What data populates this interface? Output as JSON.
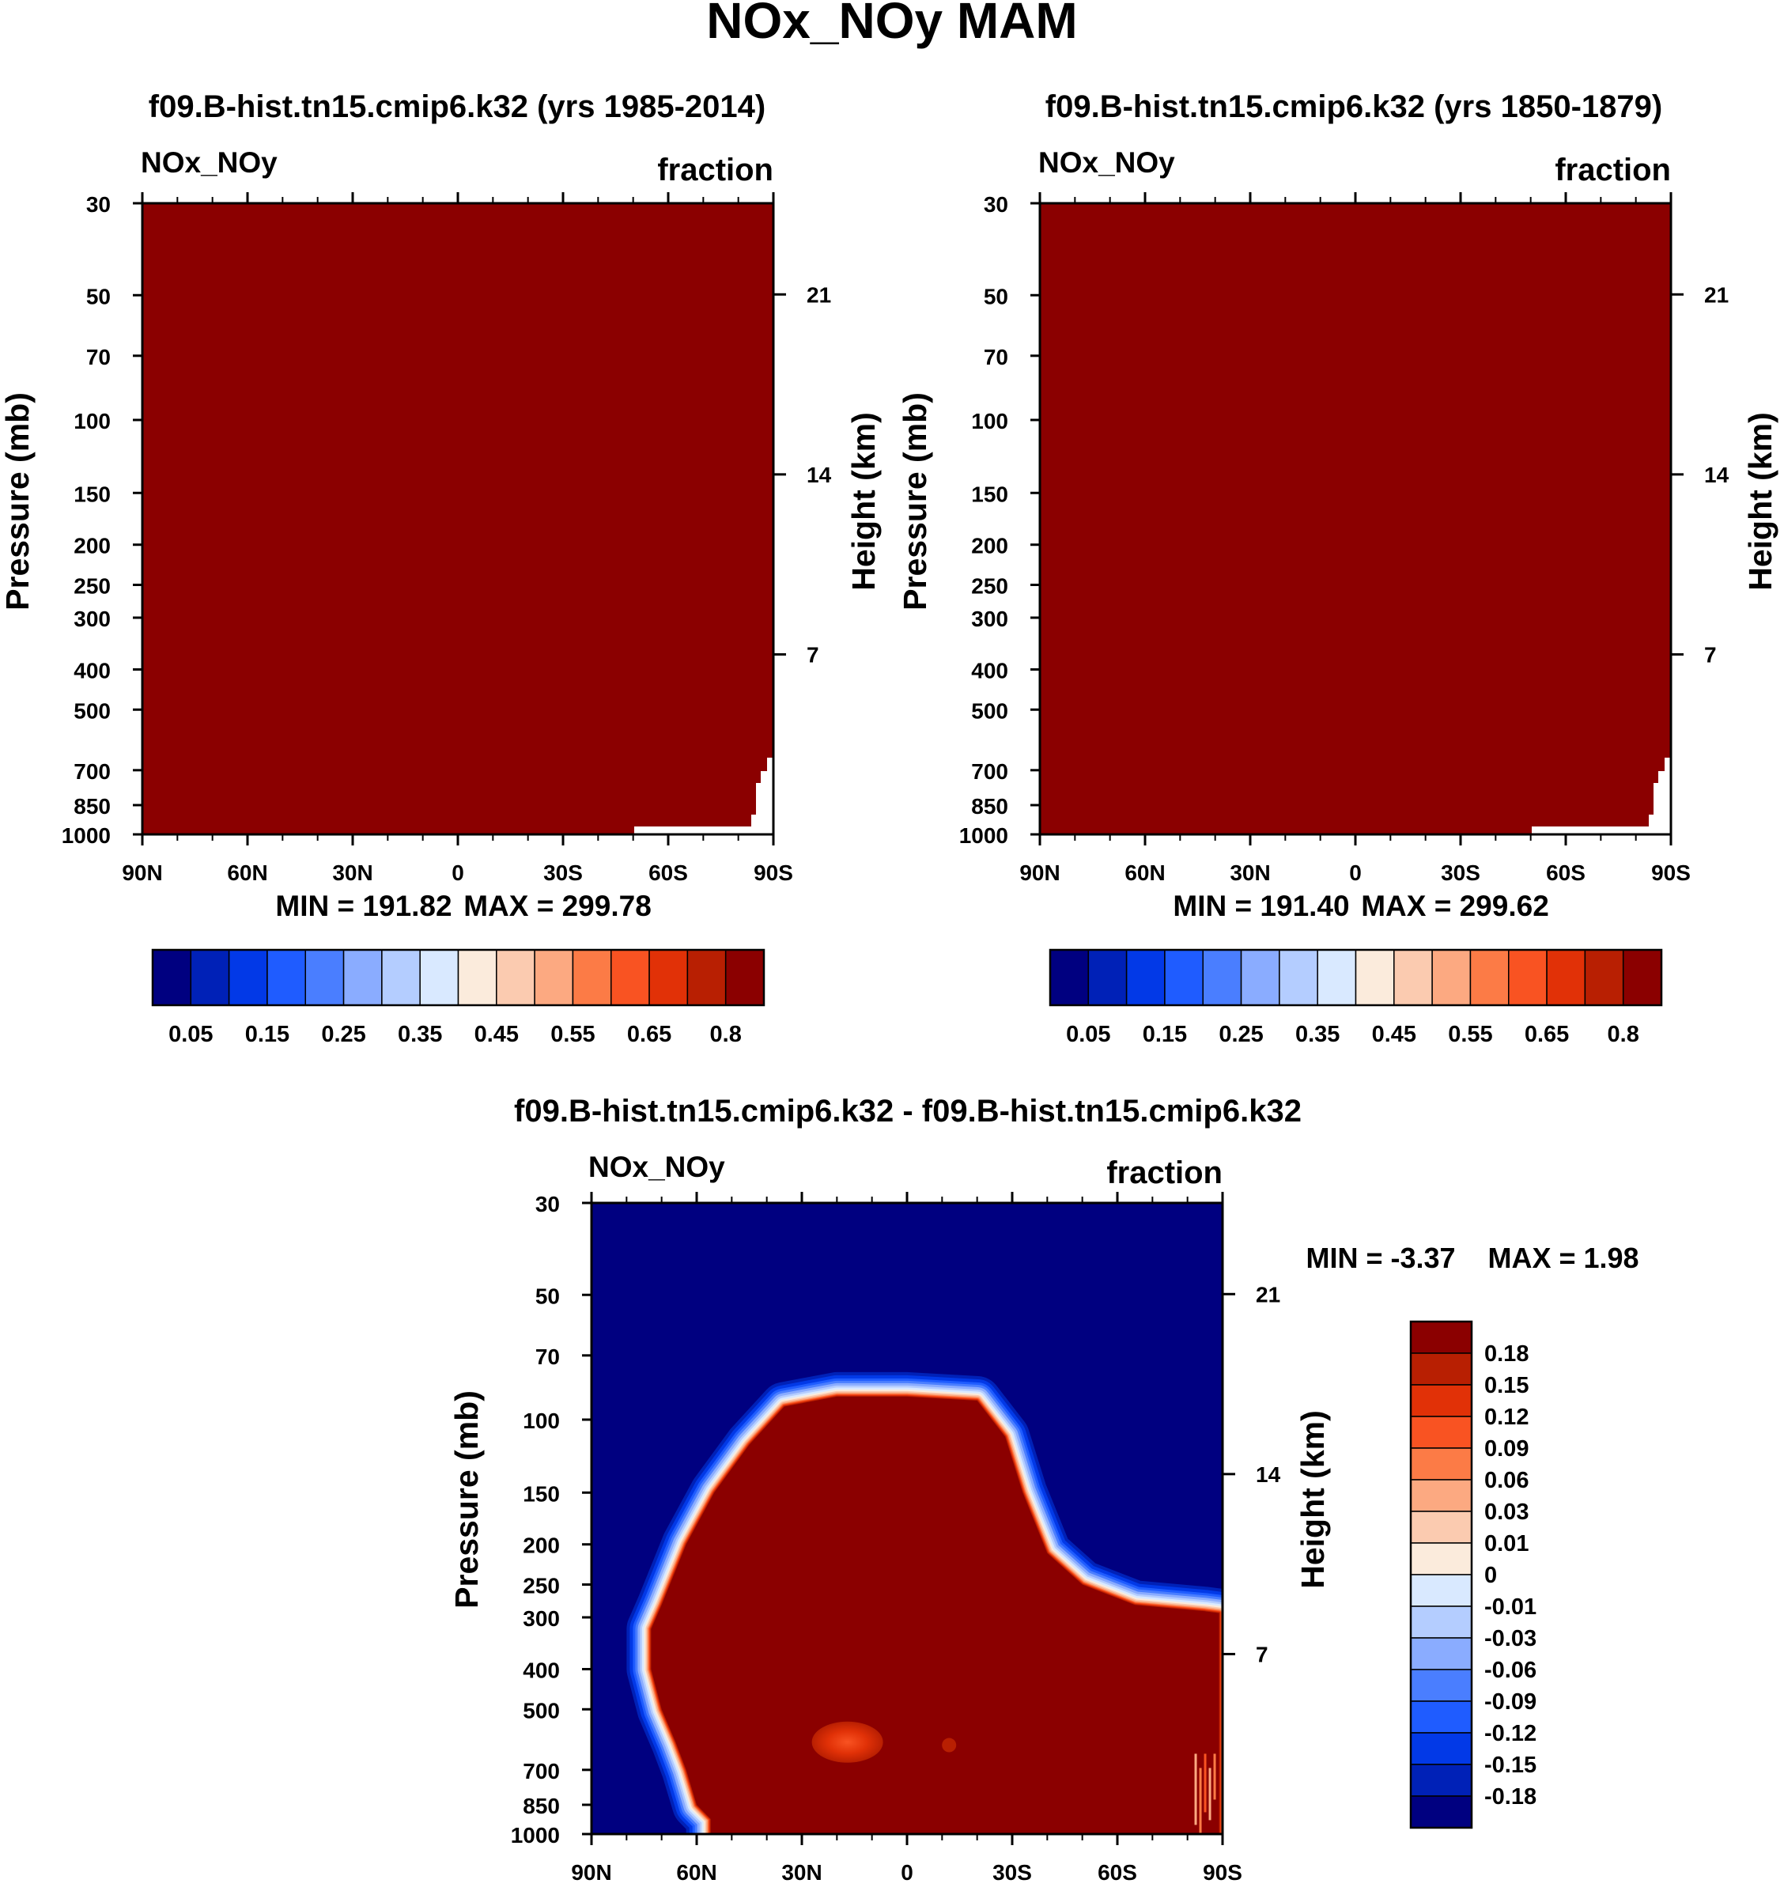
{
  "figure": {
    "title": "NOx_NOy MAM"
  },
  "colors": {
    "full_scale": [
      "#000080",
      "#0021b7",
      "#0239e7",
      "#1f5cff",
      "#4a7eff",
      "#8aacff",
      "#b4cdff",
      "#d9e9ff",
      "#fbebdc",
      "#fbcbb0",
      "#fca981",
      "#fc7b46",
      "#f95322",
      "#e13107",
      "#b81f02",
      "#8b0000"
    ],
    "diff_scale": [
      "#000080",
      "#0021b7",
      "#0239e7",
      "#1f5cff",
      "#4a7eff",
      "#8aacff",
      "#b4cdff",
      "#d9e9ff",
      "#fbebdc",
      "#fbcbb0",
      "#fca981",
      "#fc7b46",
      "#f95322",
      "#e13107",
      "#b81f02",
      "#8b0000"
    ]
  },
  "chart_data": [
    {
      "type": "heatmap",
      "id": "panel-1985",
      "title": "f09.B-hist.tn15.cmip6.k32 (yrs 1985-2014)",
      "variable": "NOx_NOy",
      "units": "fraction",
      "xlabel": "",
      "ylabel": "Pressure (mb)",
      "ylabel_right": "Height (km)",
      "x_ticks": [
        "90N",
        "60N",
        "30N",
        "0",
        "30S",
        "60S",
        "90S"
      ],
      "x_range": [
        90,
        -90
      ],
      "y_ticks": [
        30,
        50,
        70,
        100,
        150,
        200,
        250,
        300,
        400,
        500,
        700,
        850,
        1000
      ],
      "y_range_mb": [
        30,
        1000
      ],
      "height_ticks_km": [
        21,
        14,
        7
      ],
      "min_label": "MIN = 191.82",
      "max_label": "MAX = 299.78",
      "field_value": "above 0.8 everywhere (saturated at top colour)",
      "colorbar": {
        "levels": [
          0.05,
          0.1,
          0.15,
          0.2,
          0.25,
          0.3,
          0.35,
          0.4,
          0.45,
          0.5,
          0.55,
          0.6,
          0.65,
          0.7,
          0.8
        ],
        "labels": [
          "0.05",
          "0.15",
          "0.25",
          "0.35",
          "0.45",
          "0.55",
          "0.65",
          "0.8"
        ]
      }
    },
    {
      "type": "heatmap",
      "id": "panel-1850",
      "title": "f09.B-hist.tn15.cmip6.k32 (yrs 1850-1879)",
      "variable": "NOx_NOy",
      "units": "fraction",
      "xlabel": "",
      "ylabel": "Pressure (mb)",
      "ylabel_right": "Height (km)",
      "x_ticks": [
        "90N",
        "60N",
        "30N",
        "0",
        "30S",
        "60S",
        "90S"
      ],
      "x_range": [
        90,
        -90
      ],
      "y_ticks": [
        30,
        50,
        70,
        100,
        150,
        200,
        250,
        300,
        400,
        500,
        700,
        850,
        1000
      ],
      "y_range_mb": [
        30,
        1000
      ],
      "height_ticks_km": [
        21,
        14,
        7
      ],
      "min_label": "MIN = 191.40",
      "max_label": "MAX = 299.62",
      "field_value": "above 0.8 everywhere (saturated at top colour)",
      "colorbar": {
        "levels": [
          0.05,
          0.1,
          0.15,
          0.2,
          0.25,
          0.3,
          0.35,
          0.4,
          0.45,
          0.5,
          0.55,
          0.6,
          0.65,
          0.7,
          0.8
        ],
        "labels": [
          "0.05",
          "0.15",
          "0.25",
          "0.35",
          "0.45",
          "0.55",
          "0.65",
          "0.8"
        ]
      }
    },
    {
      "type": "heatmap",
      "id": "panel-diff",
      "title": "f09.B-hist.tn15.cmip6.k32 - f09.B-hist.tn15.cmip6.k32",
      "variable": "NOx_NOy",
      "units": "fraction",
      "xlabel": "",
      "ylabel": "Pressure (mb)",
      "ylabel_right": "Height (km)",
      "x_ticks": [
        "90N",
        "60N",
        "30N",
        "0",
        "30S",
        "60S",
        "90S"
      ],
      "x_range": [
        90,
        -90
      ],
      "y_ticks": [
        30,
        50,
        70,
        100,
        150,
        200,
        250,
        300,
        400,
        500,
        700,
        850,
        1000
      ],
      "y_range_mb": [
        30,
        1000
      ],
      "height_ticks_km": [
        21,
        14,
        7
      ],
      "min_label": "MIN =  -3.37",
      "max_label": "MAX =   1.98",
      "colorbar": {
        "levels": [
          0.18,
          0.15,
          0.12,
          0.09,
          0.06,
          0.03,
          0.01,
          0,
          -0.01,
          -0.03,
          -0.06,
          -0.09,
          -0.12,
          -0.15,
          -0.18
        ],
        "labels": [
          "0.18",
          "0.15",
          "0.12",
          "0.09",
          "0.06",
          "0.03",
          "0.01",
          "0",
          "-0.01",
          "-0.03",
          "-0.06",
          "-0.09",
          "-0.12",
          "-0.15",
          "-0.18"
        ]
      },
      "region_boundary_lat_p": [
        [
          56,
          1000
        ],
        [
          56,
          920
        ],
        [
          60,
          850
        ],
        [
          63,
          700
        ],
        [
          66,
          600
        ],
        [
          70,
          500
        ],
        [
          73,
          400
        ],
        [
          73,
          320
        ],
        [
          70,
          280
        ],
        [
          63,
          200
        ],
        [
          55,
          150
        ],
        [
          45,
          115
        ],
        [
          35,
          93
        ],
        [
          20,
          88
        ],
        [
          0,
          88
        ],
        [
          -20,
          90
        ],
        [
          -28,
          110
        ],
        [
          -33,
          150
        ],
        [
          -40,
          210
        ],
        [
          -50,
          250
        ],
        [
          -65,
          280
        ],
        [
          -85,
          290
        ],
        [
          -89,
          293
        ],
        [
          -89,
          1000
        ]
      ],
      "secondary_regions": [
        {
          "label": "positive blob",
          "center": [
            17,
            600
          ]
        },
        {
          "label": "small positive blob",
          "center": [
            -12,
            610
          ]
        }
      ]
    }
  ]
}
